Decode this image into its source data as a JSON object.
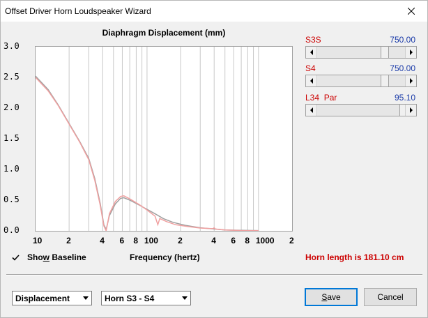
{
  "window": {
    "title": "Offset Driver Horn Loudspeaker Wizard"
  },
  "sliders": [
    {
      "label": "S3S",
      "value": "750.00"
    },
    {
      "label": "S4",
      "value": "750.00"
    },
    {
      "label": "L34  Par",
      "value": "95.10"
    }
  ],
  "controls": {
    "show_baseline": {
      "prefix": "Sho",
      "accel": "w",
      "suffix": " Baseline",
      "checked": true
    },
    "horn_length": "Horn length is 181.10 cm",
    "plot_selector": "Displacement",
    "section_selector": "Horn S3 - S4",
    "save": {
      "accel": "S",
      "rest": "ave"
    },
    "cancel": "Cancel"
  },
  "chart_data": {
    "type": "line",
    "title": "Diaphragm Displacement (mm)",
    "xlabel": "Frequency (hertz)",
    "ylabel": "",
    "x_scale": "log",
    "xlim": [
      10,
      2000
    ],
    "ylim": [
      0,
      3
    ],
    "yticks": [
      "3.0",
      "2.5",
      "2.0",
      "1.5",
      "1.0",
      "0.5",
      "0.0"
    ],
    "xticks": [
      {
        "value": 10,
        "label": "10"
      },
      {
        "value": 20,
        "label": "2"
      },
      {
        "value": 40,
        "label": "4"
      },
      {
        "value": 60,
        "label": "6"
      },
      {
        "value": 80,
        "label": "8"
      },
      {
        "value": 100,
        "label": "100"
      },
      {
        "value": 200,
        "label": "2"
      },
      {
        "value": 400,
        "label": "4"
      },
      {
        "value": 600,
        "label": "6"
      },
      {
        "value": 800,
        "label": "8"
      },
      {
        "value": 1000,
        "label": "1000"
      },
      {
        "value": 2000,
        "label": "2"
      }
    ],
    "grid": true,
    "series": [
      {
        "color": "#a0a0a0",
        "points": [
          [
            10,
            2.52
          ],
          [
            13,
            2.3
          ],
          [
            16,
            2.05
          ],
          [
            20,
            1.75
          ],
          [
            25,
            1.45
          ],
          [
            30,
            1.18
          ],
          [
            34,
            0.85
          ],
          [
            38,
            0.45
          ],
          [
            41,
            0.1
          ],
          [
            43,
            0.02
          ],
          [
            46,
            0.25
          ],
          [
            52,
            0.44
          ],
          [
            58,
            0.53
          ],
          [
            62,
            0.54
          ],
          [
            70,
            0.5
          ],
          [
            85,
            0.42
          ],
          [
            100,
            0.35
          ],
          [
            120,
            0.27
          ],
          [
            140,
            0.2
          ],
          [
            170,
            0.14
          ],
          [
            220,
            0.09
          ],
          [
            300,
            0.05
          ],
          [
            400,
            0.03
          ],
          [
            500,
            0.015
          ],
          [
            700,
            0.008
          ],
          [
            1000,
            0.004
          ]
        ]
      },
      {
        "color": "#f0a0a0",
        "points": [
          [
            10,
            2.5
          ],
          [
            13,
            2.28
          ],
          [
            16,
            2.04
          ],
          [
            20,
            1.74
          ],
          [
            25,
            1.44
          ],
          [
            30,
            1.16
          ],
          [
            34,
            0.82
          ],
          [
            38,
            0.42
          ],
          [
            41,
            0.08
          ],
          [
            43,
            0.0
          ],
          [
            46,
            0.28
          ],
          [
            52,
            0.48
          ],
          [
            58,
            0.56
          ],
          [
            62,
            0.57
          ],
          [
            70,
            0.52
          ],
          [
            85,
            0.43
          ],
          [
            100,
            0.34
          ],
          [
            118,
            0.24
          ],
          [
            125,
            0.1
          ],
          [
            130,
            0.2
          ],
          [
            150,
            0.15
          ],
          [
            180,
            0.1
          ],
          [
            230,
            0.07
          ],
          [
            300,
            0.045
          ],
          [
            390,
            0.035
          ],
          [
            400,
            0.05
          ],
          [
            410,
            0.03
          ],
          [
            500,
            0.015
          ],
          [
            700,
            0.005
          ],
          [
            1000,
            0.002
          ]
        ]
      }
    ]
  }
}
